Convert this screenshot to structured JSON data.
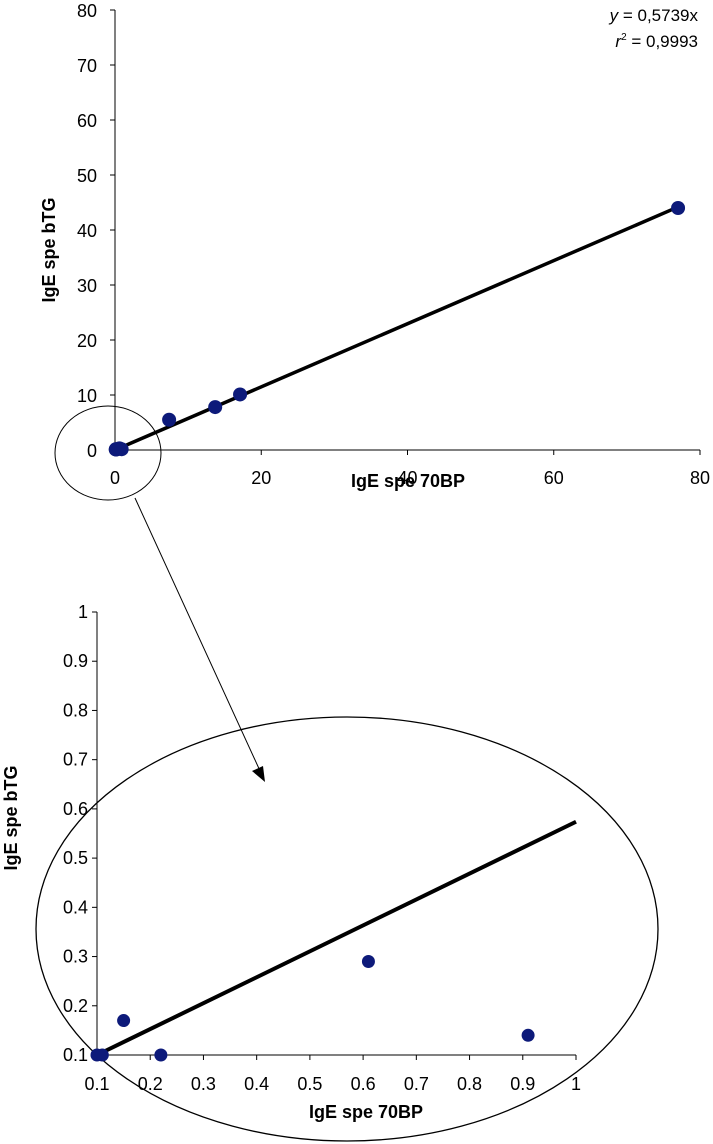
{
  "chart_data": [
    {
      "type": "scatter",
      "xlabel": "IgE spe 70BP",
      "ylabel": "IgE spe bTG",
      "xlim": [
        0,
        80
      ],
      "ylim": [
        0,
        80
      ],
      "xticks": [
        0,
        20,
        40,
        60,
        80
      ],
      "yticks": [
        0,
        10,
        20,
        30,
        40,
        50,
        60,
        70,
        80
      ],
      "points": [
        {
          "x": 0.1,
          "y": 0.1
        },
        {
          "x": 0.11,
          "y": 0.1
        },
        {
          "x": 0.15,
          "y": 0.17
        },
        {
          "x": 0.22,
          "y": 0.1
        },
        {
          "x": 0.61,
          "y": 0.29
        },
        {
          "x": 0.91,
          "y": 0.14
        },
        {
          "x": 7.4,
          "y": 5.5
        },
        {
          "x": 13.7,
          "y": 7.8
        },
        {
          "x": 17.1,
          "y": 10.1
        },
        {
          "x": 77.0,
          "y": 44.0
        }
      ],
      "fit": {
        "slope": 0.5739,
        "x_range": [
          0,
          77
        ]
      },
      "equation": {
        "y_label": "y",
        "y_text": " = 0,5739x",
        "r_label": "r",
        "r_sup": "2",
        "r_text": " = 0,9993"
      },
      "point_color": "#0d1a7a",
      "grid": false,
      "legend": "none"
    },
    {
      "type": "scatter",
      "xlabel": "IgE spe 70BP",
      "ylabel": "IgE spe bTG",
      "xlim": [
        0.1,
        1.0
      ],
      "ylim": [
        0.1,
        1.0
      ],
      "xticks": [
        "0.1",
        "0.2",
        "0.3",
        "0.4",
        "0.5",
        "0.6",
        "0.7",
        "0.8",
        "0.9",
        "1"
      ],
      "yticks": [
        "0.1",
        "0.2",
        "0.3",
        "0.4",
        "0.5",
        "0.6",
        "0.7",
        "0.8",
        "0.9",
        "1"
      ],
      "points": [
        {
          "x": 0.1,
          "y": 0.1
        },
        {
          "x": 0.11,
          "y": 0.1
        },
        {
          "x": 0.15,
          "y": 0.17
        },
        {
          "x": 0.22,
          "y": 0.1
        },
        {
          "x": 0.61,
          "y": 0.29
        },
        {
          "x": 0.91,
          "y": 0.14
        }
      ],
      "fit": {
        "slope": 0.5739,
        "x_range": [
          0.1,
          1.0
        ]
      },
      "point_color": "#0d1a7a",
      "grid": false,
      "legend": "none"
    }
  ]
}
